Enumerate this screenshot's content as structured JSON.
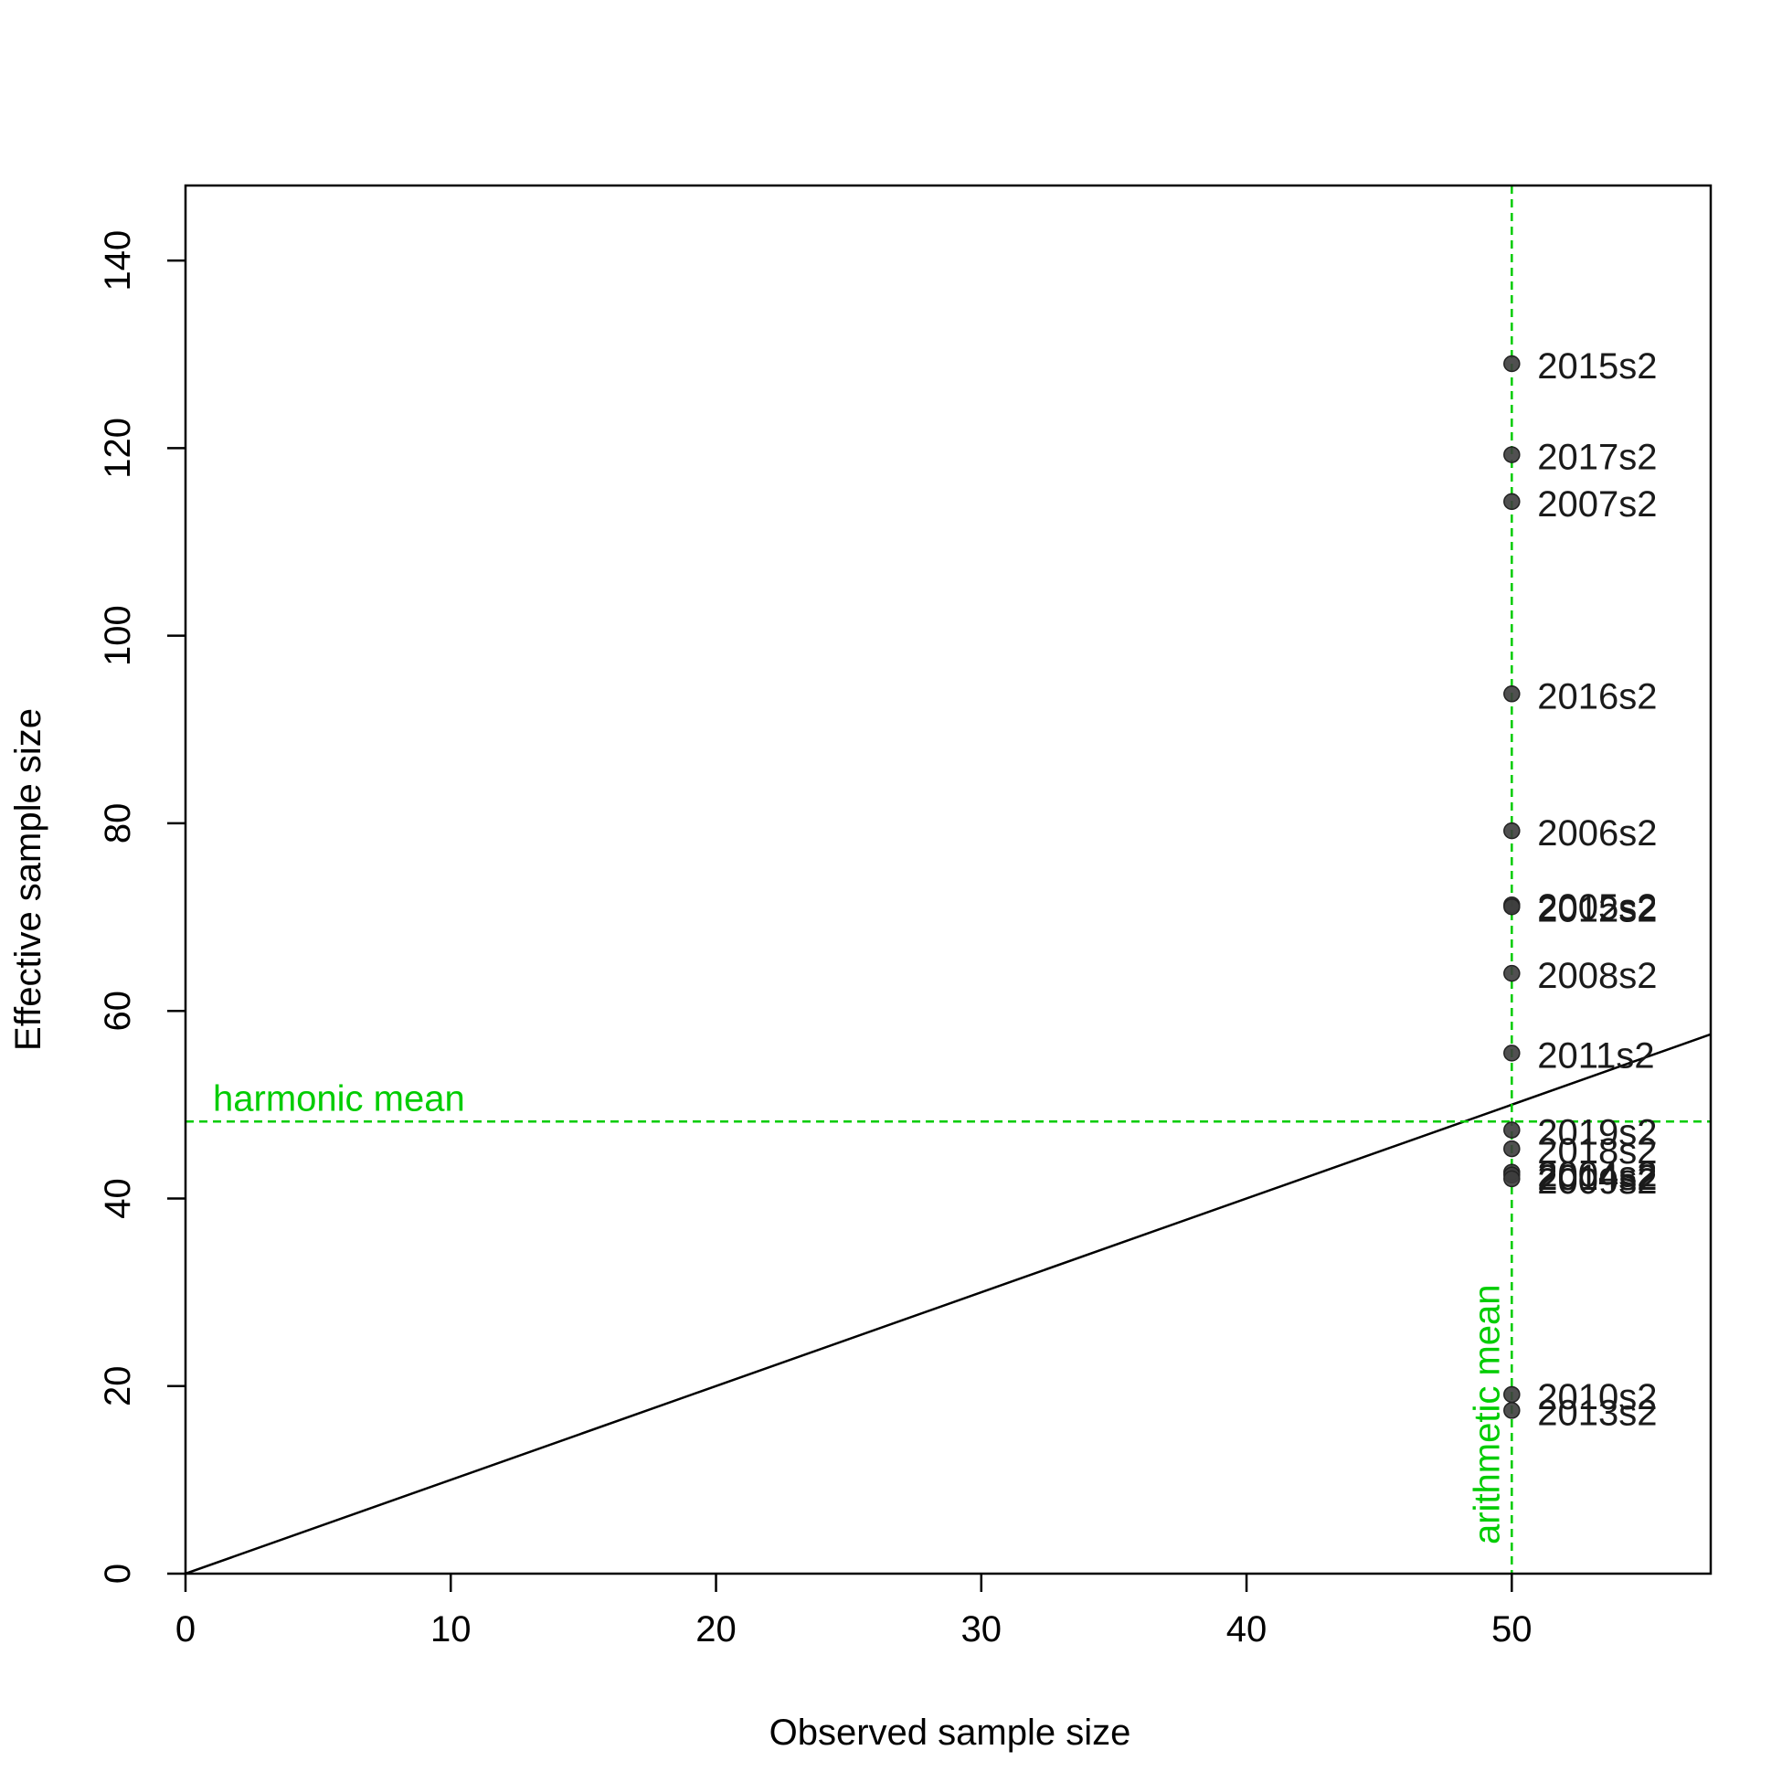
{
  "chart_data": {
    "type": "scatter",
    "title": "",
    "xlabel": "Observed sample size",
    "ylabel": "Effective sample size",
    "xlim": [
      0,
      57.5
    ],
    "ylim": [
      0,
      148
    ],
    "x_ticks": [
      0,
      10,
      20,
      30,
      40,
      50
    ],
    "y_ticks": [
      0,
      20,
      40,
      60,
      80,
      100,
      120,
      140
    ],
    "grid": false,
    "points": [
      {
        "label": "2015s2",
        "x": 50,
        "y": 129.0
      },
      {
        "label": "2017s2",
        "x": 50,
        "y": 119.3
      },
      {
        "label": "2007s2",
        "x": 50,
        "y": 114.3
      },
      {
        "label": "2016s2",
        "x": 50,
        "y": 93.8
      },
      {
        "label": "2006s2",
        "x": 50,
        "y": 79.2
      },
      {
        "label": "2005s2",
        "x": 50,
        "y": 71.3
      },
      {
        "label": "2012s2",
        "x": 50,
        "y": 71.1
      },
      {
        "label": "2008s2",
        "x": 50,
        "y": 64.0
      },
      {
        "label": "2011s2",
        "x": 50,
        "y": 55.5
      },
      {
        "label": "2019s2",
        "x": 50,
        "y": 47.3
      },
      {
        "label": "2018s2",
        "x": 50,
        "y": 45.3
      },
      {
        "label": "2004s2",
        "x": 50,
        "y": 42.8
      },
      {
        "label": "2014s2",
        "x": 50,
        "y": 42.5
      },
      {
        "label": "2009s2",
        "x": 50,
        "y": 42.1
      },
      {
        "label": "2010s2",
        "x": 50,
        "y": 19.1
      },
      {
        "label": "2013s2",
        "x": 50,
        "y": 17.4
      }
    ],
    "reference_lines": [
      {
        "kind": "identity",
        "label": "",
        "color": "#000000",
        "style": "solid"
      },
      {
        "kind": "horizontal",
        "label": "harmonic mean",
        "y": 48.2,
        "color": "#00cc00",
        "style": "dashed"
      },
      {
        "kind": "vertical",
        "label": "arithmetic mean",
        "x": 50,
        "color": "#00cc00",
        "style": "dashed"
      }
    ],
    "point_color": "#3d3d3d",
    "label_color": "#1a1a1a"
  }
}
